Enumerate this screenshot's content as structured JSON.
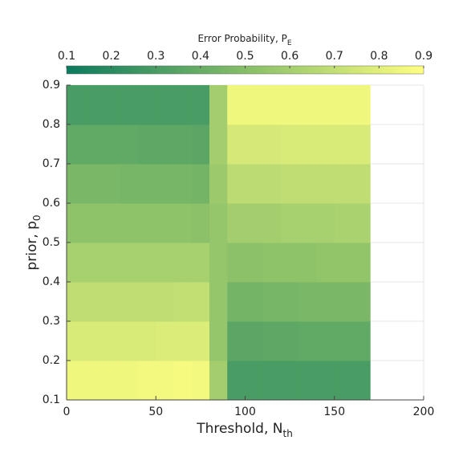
{
  "chart_data": {
    "type": "heatmap",
    "colorbar_label": {
      "text": "Error Probability, P",
      "sub": "E"
    },
    "xlabel": {
      "text": "Threshold, N",
      "sub": "th"
    },
    "ylabel": {
      "text": "prior, p",
      "sub": "0"
    },
    "x": [
      0,
      10,
      20,
      30,
      40,
      50,
      60,
      70,
      80,
      90,
      100,
      110,
      120,
      130,
      140,
      150,
      160,
      170
    ],
    "y": [
      0.1,
      0.2,
      0.3,
      0.4,
      0.5,
      0.6,
      0.7,
      0.8,
      0.9
    ],
    "z": [
      [
        0.85,
        0.85,
        0.85,
        0.85,
        0.86,
        0.86,
        0.87,
        0.86,
        0.6,
        0.3,
        0.3,
        0.3,
        0.3,
        0.3,
        0.3,
        0.3,
        0.3
      ],
      [
        0.77,
        0.77,
        0.77,
        0.77,
        0.77,
        0.78,
        0.78,
        0.78,
        0.55,
        0.36,
        0.36,
        0.37,
        0.37,
        0.38,
        0.38,
        0.38,
        0.38
      ],
      [
        0.69,
        0.69,
        0.69,
        0.69,
        0.69,
        0.69,
        0.7,
        0.7,
        0.55,
        0.44,
        0.44,
        0.45,
        0.45,
        0.46,
        0.46,
        0.46,
        0.46
      ],
      [
        0.61,
        0.61,
        0.61,
        0.61,
        0.61,
        0.61,
        0.61,
        0.61,
        0.55,
        0.52,
        0.52,
        0.53,
        0.53,
        0.53,
        0.54,
        0.54,
        0.54
      ],
      [
        0.53,
        0.53,
        0.53,
        0.53,
        0.53,
        0.53,
        0.53,
        0.52,
        0.55,
        0.6,
        0.6,
        0.6,
        0.61,
        0.61,
        0.61,
        0.62,
        0.62
      ],
      [
        0.46,
        0.46,
        0.46,
        0.45,
        0.45,
        0.45,
        0.45,
        0.44,
        0.57,
        0.68,
        0.68,
        0.68,
        0.69,
        0.69,
        0.69,
        0.69,
        0.69
      ],
      [
        0.38,
        0.38,
        0.38,
        0.38,
        0.37,
        0.37,
        0.37,
        0.36,
        0.6,
        0.76,
        0.76,
        0.76,
        0.77,
        0.77,
        0.77,
        0.77,
        0.77
      ],
      [
        0.3,
        0.3,
        0.3,
        0.3,
        0.3,
        0.3,
        0.3,
        0.3,
        0.6,
        0.85,
        0.85,
        0.85,
        0.85,
        0.85,
        0.85,
        0.85,
        0.85
      ]
    ],
    "colormap": [
      "#0b7a5e",
      "#86be68",
      "#ffff80"
    ],
    "clim": [
      0.1,
      0.9
    ],
    "cticks": [
      0.1,
      0.2,
      0.3,
      0.4,
      0.5,
      0.6,
      0.7,
      0.8,
      0.9
    ],
    "xlim": [
      0,
      200
    ],
    "xticks": [
      0,
      50,
      100,
      150,
      200
    ],
    "ylim": [
      0.1,
      0.9
    ],
    "yticks": [
      0.1,
      0.2,
      0.3,
      0.4,
      0.5,
      0.6,
      0.7,
      0.8,
      0.9
    ],
    "grid": true
  }
}
